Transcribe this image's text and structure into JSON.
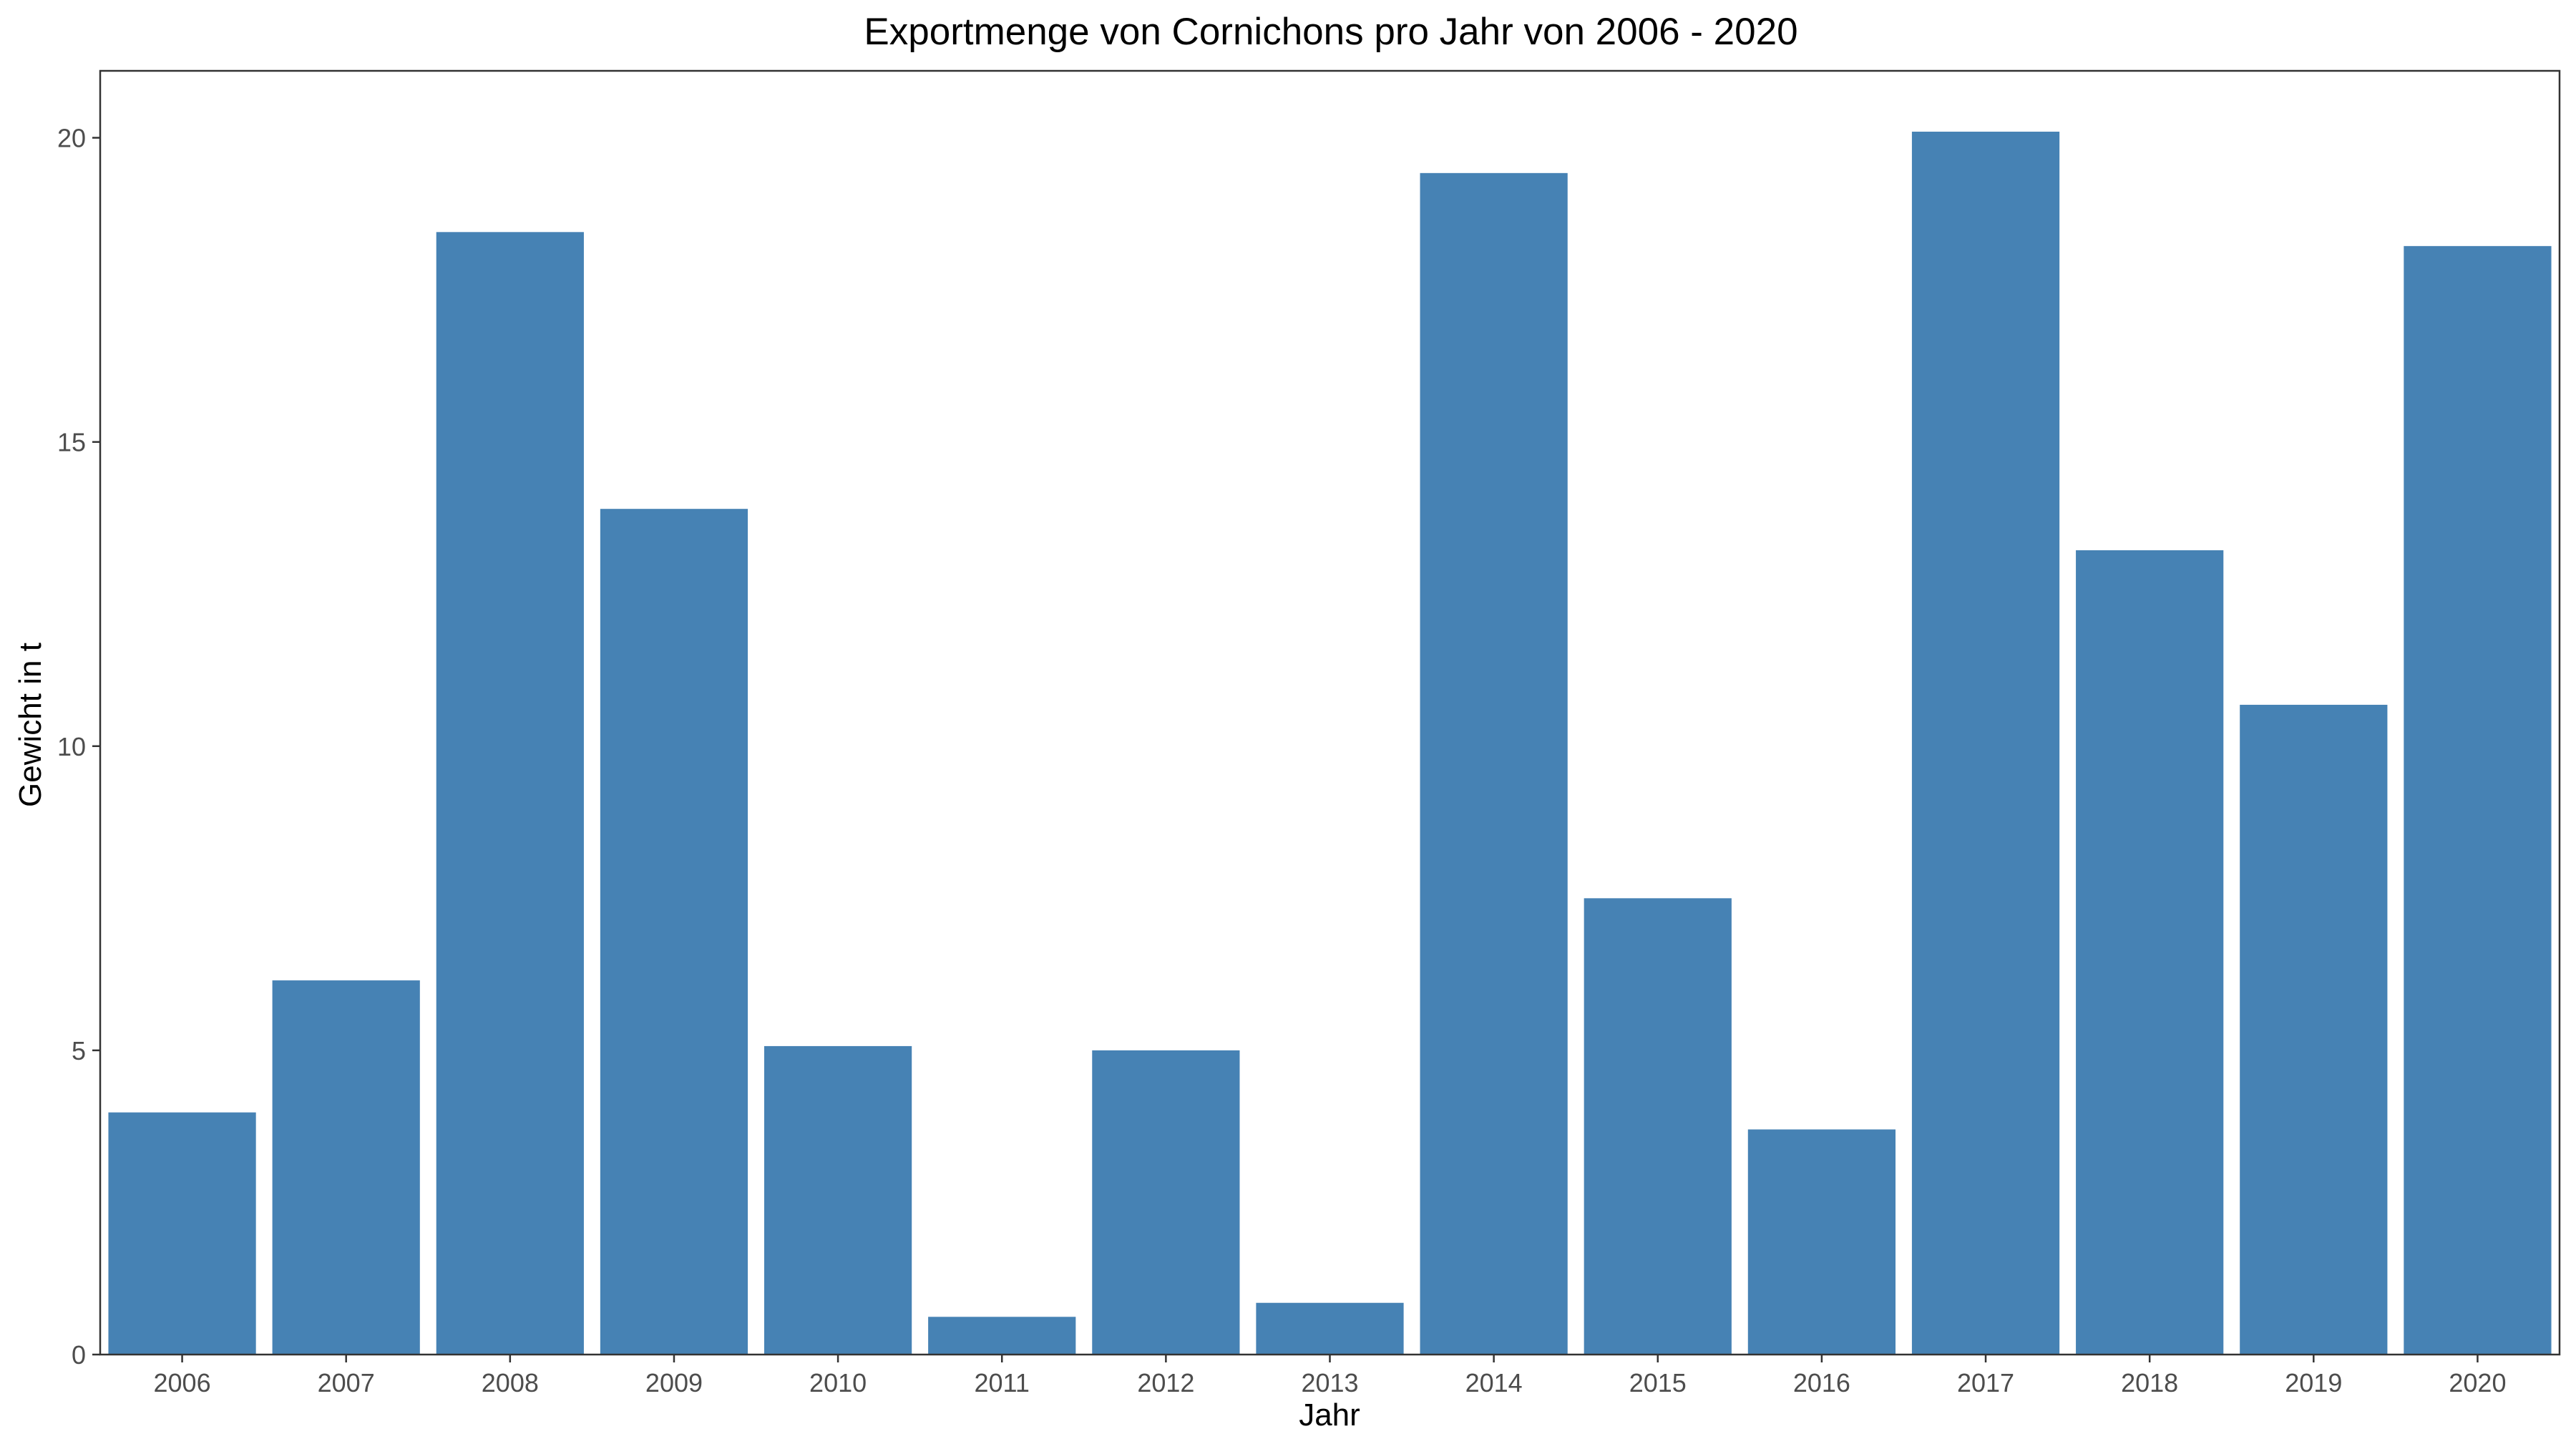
{
  "chart_data": {
    "type": "bar",
    "title": "Exportmenge von Cornichons pro Jahr von 2006 - 2020",
    "xlabel": "Jahr",
    "ylabel": "Gewicht in t",
    "categories": [
      "2006",
      "2007",
      "2008",
      "2009",
      "2010",
      "2011",
      "2012",
      "2013",
      "2014",
      "2015",
      "2016",
      "2017",
      "2018",
      "2019",
      "2020"
    ],
    "values": [
      3.98,
      6.15,
      18.45,
      13.9,
      5.07,
      0.62,
      5.0,
      0.85,
      19.42,
      7.5,
      3.7,
      20.1,
      13.22,
      10.68,
      18.22
    ],
    "ylim": [
      0,
      21.1
    ],
    "yticks": [
      0,
      5,
      10,
      15,
      20
    ],
    "ytick_labels": [
      "0",
      "5",
      "10",
      "15",
      "20"
    ],
    "grid": false,
    "legend": "none",
    "colors": {
      "bar": "#4682b4",
      "axis_text": "#4d4d4d",
      "title_text": "#000000",
      "border": "#333333"
    }
  }
}
